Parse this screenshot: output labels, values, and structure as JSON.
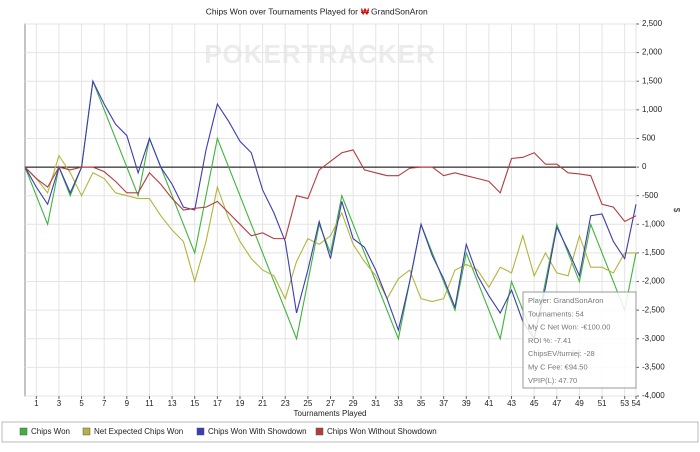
{
  "chart_data": {
    "type": "line",
    "title": "Chips Won over Tournaments Played for",
    "title_player": "GrandSonAron",
    "watermark": "POKERTRACKER",
    "xlabel": "Tournaments Played",
    "ylabel": "$",
    "x": [
      0,
      1,
      2,
      3,
      4,
      5,
      6,
      7,
      8,
      9,
      10,
      11,
      12,
      13,
      14,
      15,
      16,
      17,
      18,
      19,
      20,
      21,
      22,
      23,
      24,
      25,
      26,
      27,
      28,
      29,
      30,
      31,
      32,
      33,
      34,
      35,
      36,
      37,
      38,
      39,
      40,
      41,
      42,
      43,
      44,
      45,
      46,
      47,
      48,
      49,
      50,
      51,
      52,
      53,
      54
    ],
    "xlim": [
      0,
      54
    ],
    "xticks": [
      1,
      3,
      5,
      7,
      9,
      11,
      13,
      15,
      17,
      19,
      21,
      23,
      25,
      27,
      29,
      31,
      33,
      35,
      37,
      39,
      41,
      43,
      45,
      47,
      49,
      51,
      53,
      54
    ],
    "ylim": [
      -4000,
      2500
    ],
    "yticks": [
      {
        "value": -4000,
        "label": "-4,000"
      },
      {
        "value": -3500,
        "label": "-3,500"
      },
      {
        "value": -3000,
        "label": "-3,000"
      },
      {
        "value": -2500,
        "label": "-2,500"
      },
      {
        "value": -2000,
        "label": "-2,000"
      },
      {
        "value": -1500,
        "label": "-1,500"
      },
      {
        "value": -1000,
        "label": "-1,000"
      },
      -500,
      0,
      500,
      {
        "value": 1000,
        "label": "1,000"
      },
      {
        "value": 1500,
        "label": "1,500"
      },
      {
        "value": 2000,
        "label": "2,000"
      },
      {
        "value": 2500,
        "label": "2,500"
      }
    ],
    "grid": true,
    "series": [
      {
        "name": "Chips Won",
        "color": "#3cb43c",
        "values": [
          0,
          -500,
          -1000,
          0,
          -500,
          0,
          1500,
          1000,
          500,
          0,
          -500,
          500,
          0,
          -500,
          -1000,
          -1500,
          -500,
          500,
          0,
          -500,
          -1000,
          -1500,
          -2000,
          -2500,
          -3000,
          -2000,
          -1000,
          -1500,
          -500,
          -1000,
          -1500,
          -2000,
          -2500,
          -3000,
          -2000,
          -1000,
          -1500,
          -2000,
          -2500,
          -1500,
          -2000,
          -2500,
          -3000,
          -2000,
          -2500,
          -3000,
          -2000,
          -1000,
          -1500,
          -2000,
          -1000,
          -1500,
          -2000,
          -2500,
          -1500
        ]
      },
      {
        "name": "Net Expected Chips Won",
        "color": "#b4b43c",
        "values": [
          0,
          -200,
          -450,
          200,
          -100,
          -500,
          -100,
          -200,
          -450,
          -500,
          -550,
          -550,
          -850,
          -1100,
          -1300,
          -2000,
          -1300,
          -350,
          -900,
          -1300,
          -1600,
          -1800,
          -1900,
          -2300,
          -1650,
          -1250,
          -1350,
          -1200,
          -800,
          -1350,
          -1650,
          -1900,
          -2300,
          -1950,
          -1800,
          -2300,
          -2350,
          -2300,
          -1800,
          -1700,
          -1800,
          -2100,
          -1750,
          -1850,
          -1200,
          -1900,
          -1500,
          -1850,
          -1900,
          -1200,
          -1750,
          -1750,
          -1850,
          -1500,
          -1500
        ]
      },
      {
        "name": "Chips Won With Showdown",
        "color": "#3c3cb4",
        "values": [
          0,
          -350,
          -650,
          0,
          -450,
          0,
          1500,
          1100,
          750,
          550,
          -100,
          500,
          0,
          -300,
          -700,
          -750,
          300,
          1100,
          800,
          450,
          250,
          -400,
          -800,
          -1300,
          -2550,
          -1800,
          -950,
          -1600,
          -600,
          -1250,
          -1400,
          -1800,
          -2300,
          -2850,
          -2000,
          -1000,
          -1550,
          -1950,
          -2450,
          -1350,
          -1900,
          -2250,
          -2550,
          -2150,
          -2700,
          -3000,
          -2100,
          -1050,
          -1450,
          -1900,
          -850,
          -820,
          -1300,
          -1600,
          -650
        ]
      },
      {
        "name": "Chips Won Without Showdown",
        "color": "#b43c3c",
        "values": [
          0,
          -200,
          -350,
          0,
          -50,
          0,
          0,
          -80,
          -250,
          -450,
          -450,
          -100,
          -300,
          -550,
          -750,
          -720,
          -700,
          -600,
          -800,
          -1000,
          -1200,
          -1150,
          -1250,
          -1250,
          -500,
          -550,
          -50,
          100,
          250,
          300,
          -50,
          -100,
          -150,
          -150,
          -20,
          0,
          0,
          -150,
          -100,
          -150,
          -200,
          -250,
          -450,
          150,
          170,
          250,
          50,
          50,
          -100,
          -120,
          -150,
          -650,
          -700,
          -950,
          -850
        ]
      }
    ],
    "tooltip": [
      "Player: GrandSonAron",
      "Tournaments: 54",
      "My C Net Won: -€100.00",
      "ROI %: -7.41",
      "ChipsEV/turniej: -28",
      "My C Fee: €94.50",
      "VPIP(L): 47.70"
    ]
  }
}
